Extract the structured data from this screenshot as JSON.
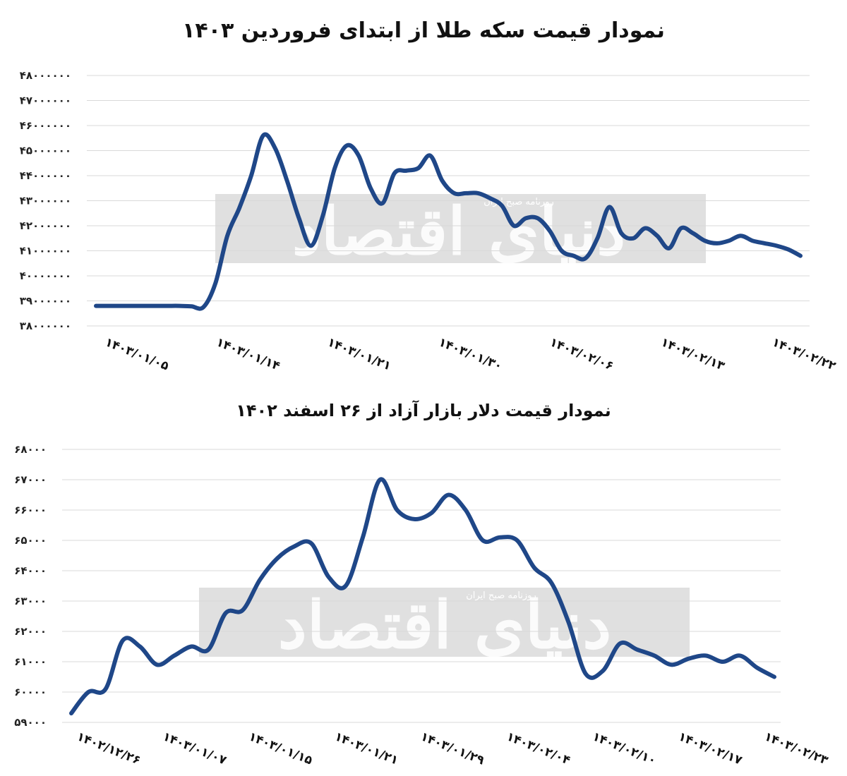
{
  "watermark": {
    "text": "دنیای اقتصاد",
    "caption": "روزنامه صبح ایران"
  },
  "chart_data": [
    {
      "type": "line",
      "title": "نمودار قیمت سکه طلا از ابتدای فروردین ۱۴۰۳",
      "ylim": [
        38000000,
        48000000
      ],
      "yticks": [
        38000000,
        39000000,
        40000000,
        41000000,
        42000000,
        43000000,
        44000000,
        45000000,
        46000000,
        47000000,
        48000000
      ],
      "ytick_labels": [
        "۳۸۰۰۰۰۰۰",
        "۳۹۰۰۰۰۰۰",
        "۴۰۰۰۰۰۰۰",
        "۴۱۰۰۰۰۰۰",
        "۴۲۰۰۰۰۰۰",
        "۴۳۰۰۰۰۰۰",
        "۴۴۰۰۰۰۰۰",
        "۴۵۰۰۰۰۰۰",
        "۴۶۰۰۰۰۰۰",
        "۴۷۰۰۰۰۰۰",
        "۴۸۰۰۰۰۰۰"
      ],
      "xtick_labels": [
        "۱۴۰۳/۰۱/۰۵",
        "۱۴۰۳/۰۱/۱۴",
        "۱۴۰۳/۰۱/۲۱",
        "۱۴۰۳/۰۱/۳۰",
        "۱۴۰۳/۰۲/۰۶",
        "۱۴۰۳/۰۲/۱۳",
        "۱۴۰۳/۰۲/۲۲"
      ],
      "color": "#1f4788",
      "grid": true,
      "values": [
        38800000,
        38800000,
        38800000,
        38800000,
        38800000,
        38800000,
        38800000,
        38800000,
        38780000,
        38750000,
        39700000,
        41600000,
        42700000,
        44000000,
        45600000,
        45100000,
        43800000,
        42300000,
        41200000,
        42400000,
        44300000,
        45200000,
        44800000,
        43500000,
        42900000,
        44100000,
        44200000,
        44300000,
        44800000,
        43800000,
        43300000,
        43300000,
        43300000,
        43100000,
        42800000,
        42000000,
        42300000,
        42300000,
        41800000,
        41000000,
        40800000,
        40700000,
        41500000,
        42750000,
        41700000,
        41500000,
        41900000,
        41600000,
        41100000,
        41900000,
        41700000,
        41400000,
        41300000,
        41400000,
        41600000,
        41400000,
        41300000,
        41200000,
        41050000,
        40800000
      ]
    },
    {
      "type": "line",
      "title": "نمودار قیمت دلار بازار آزاد از ۲۶ اسفند ۱۴۰۲",
      "ylim": [
        59000,
        68000
      ],
      "yticks": [
        59000,
        60000,
        61000,
        62000,
        63000,
        64000,
        65000,
        66000,
        67000,
        68000
      ],
      "ytick_labels": [
        "۵۹۰۰۰",
        "۶۰۰۰۰",
        "۶۱۰۰۰",
        "۶۲۰۰۰",
        "۶۳۰۰۰",
        "۶۴۰۰۰",
        "۶۵۰۰۰",
        "۶۶۰۰۰",
        "۶۷۰۰۰",
        "۶۸۰۰۰"
      ],
      "xtick_labels": [
        "۱۴۰۲/۱۲/۲۶",
        "۱۴۰۳/۰۱/۰۷",
        "۱۴۰۳/۰۱/۱۵",
        "۱۴۰۳/۰۱/۲۱",
        "۱۴۰۳/۰۱/۲۹",
        "۱۴۰۳/۰۲/۰۴",
        "۱۴۰۳/۰۲/۱۰",
        "۱۴۰۳/۰۲/۱۷",
        "۱۴۰۳/۰۲/۲۳"
      ],
      "color": "#1f4788",
      "grid": true,
      "values": [
        59300,
        60000,
        60100,
        61700,
        61500,
        60900,
        61200,
        61500,
        61400,
        62600,
        62700,
        63700,
        64400,
        64800,
        64900,
        63800,
        63500,
        65100,
        67000,
        66000,
        65700,
        65900,
        66500,
        66000,
        65000,
        65100,
        65000,
        64100,
        63600,
        62300,
        60600,
        60700,
        61600,
        61400,
        61200,
        60900,
        61100,
        61200,
        61000,
        61200,
        60800,
        60500
      ]
    }
  ]
}
